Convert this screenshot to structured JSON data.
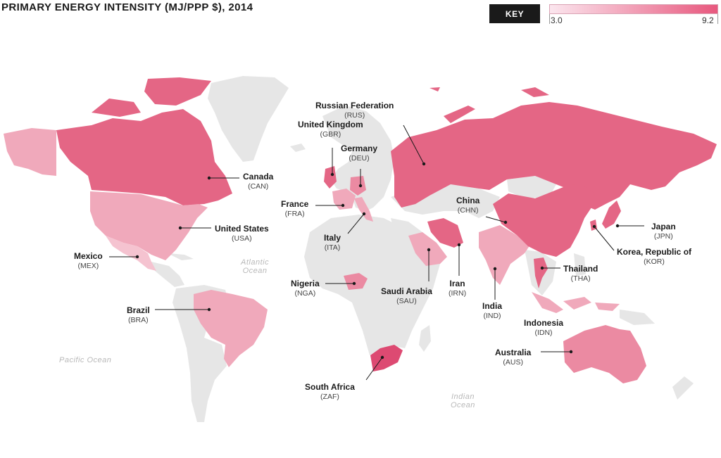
{
  "title": "PRIMARY ENERGY INTENSITY (MJ/PPP $), 2014",
  "key": {
    "button_label": "KEY",
    "min_label": "3.0",
    "max_label": "9.2",
    "color_low": "#fbe6ee",
    "color_high": "#e8587e"
  },
  "colors": {
    "no_data": "#e6e6e6",
    "dark": "#e46685",
    "medium": "#eb8aa2",
    "light": "#f0a9bb",
    "lighter": "#f5c3d0",
    "darkest": "#dd4a72"
  },
  "oceans": {
    "atlantic_1": "Atlantic",
    "atlantic_2": "Ocean",
    "pacific": "Pacific Ocean",
    "indian_1": "Indian",
    "indian_2": "Ocean"
  },
  "countries": [
    {
      "id": "rus",
      "name": "Russian Federation",
      "code": "(RUS)"
    },
    {
      "id": "gbr",
      "name": "United Kingdom",
      "code": "(GBR)"
    },
    {
      "id": "deu",
      "name": "Germany",
      "code": "(DEU)"
    },
    {
      "id": "can",
      "name": "Canada",
      "code": "(CAN)"
    },
    {
      "id": "fra",
      "name": "France",
      "code": "(FRA)"
    },
    {
      "id": "usa",
      "name": "United States",
      "code": "(USA)"
    },
    {
      "id": "chn",
      "name": "China",
      "code": "(CHN)"
    },
    {
      "id": "jpn",
      "name": "Japan",
      "code": "(JPN)"
    },
    {
      "id": "ita",
      "name": "Italy",
      "code": "(ITA)"
    },
    {
      "id": "kor",
      "name": "Korea, Republic of",
      "code": "(KOR)"
    },
    {
      "id": "mex",
      "name": "Mexico",
      "code": "(MEX)"
    },
    {
      "id": "tha",
      "name": "Thailand",
      "code": "(THA)"
    },
    {
      "id": "nga",
      "name": "Nigeria",
      "code": "(NGA)"
    },
    {
      "id": "irn",
      "name": "Iran",
      "code": "(IRN)"
    },
    {
      "id": "sau",
      "name": "Saudi Arabia",
      "code": "(SAU)"
    },
    {
      "id": "bra",
      "name": "Brazil",
      "code": "(BRA)"
    },
    {
      "id": "ind",
      "name": "India",
      "code": "(IND)"
    },
    {
      "id": "idn",
      "name": "Indonesia",
      "code": "(IDN)"
    },
    {
      "id": "aus",
      "name": "Australia",
      "code": "(AUS)"
    },
    {
      "id": "zaf",
      "name": "South Africa",
      "code": "(ZAF)"
    }
  ]
}
